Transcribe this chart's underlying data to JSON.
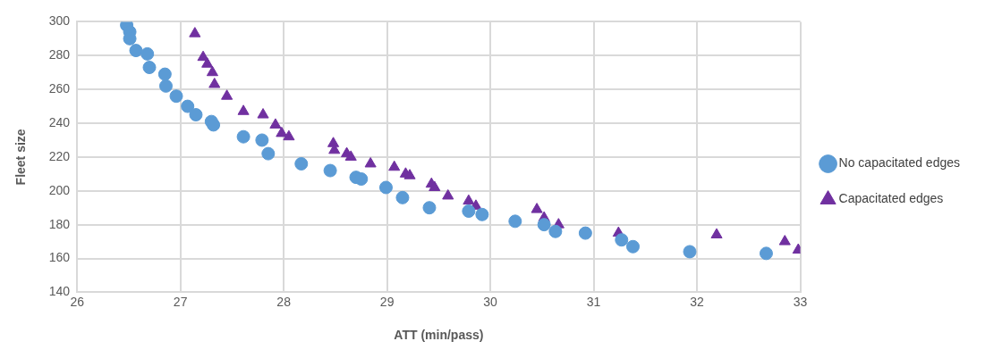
{
  "chart_data": {
    "type": "scatter",
    "xlabel": "ATT (min/pass)",
    "ylabel": "Fleet size",
    "xlim": [
      26,
      33
    ],
    "xticks": [
      26,
      27,
      28,
      29,
      30,
      31,
      32,
      33
    ],
    "ylim": [
      140,
      300
    ],
    "yticks": [
      140,
      160,
      180,
      200,
      220,
      240,
      260,
      280,
      300
    ],
    "grid": true,
    "legend": "right",
    "series": [
      {
        "name": "No capacitated edges",
        "color": "#5b9bd5",
        "marker": "circle",
        "x": [
          26.48,
          26.51,
          26.51,
          26.57,
          26.68,
          26.7,
          26.85,
          26.86,
          26.96,
          27.07,
          27.15,
          27.3,
          27.32,
          27.61,
          27.79,
          27.85,
          28.17,
          28.45,
          28.7,
          28.75,
          28.99,
          29.15,
          29.41,
          29.79,
          29.92,
          30.24,
          30.52,
          30.63,
          30.92,
          31.27,
          31.38,
          31.93,
          32.67
        ],
        "values": [
          298,
          294,
          290,
          283,
          281,
          273,
          269,
          262,
          256,
          250,
          245,
          241,
          239,
          232,
          230,
          222,
          216,
          212,
          208,
          207,
          202,
          196,
          190,
          188,
          186,
          182,
          180,
          176,
          175,
          171,
          167,
          164,
          163
        ]
      },
      {
        "name": "Capacitated edges",
        "color": "#7030a0",
        "marker": "triangle",
        "x": [
          27.14,
          27.22,
          27.26,
          27.31,
          27.33,
          27.45,
          27.61,
          27.8,
          27.92,
          27.98,
          28.05,
          28.48,
          28.49,
          28.61,
          28.65,
          28.84,
          29.07,
          29.18,
          29.22,
          29.43,
          29.46,
          29.59,
          29.79,
          29.86,
          30.45,
          30.52,
          30.66,
          31.24,
          32.19,
          32.85,
          32.98
        ],
        "values": [
          293,
          279,
          275,
          270,
          263,
          256,
          247,
          245,
          239,
          234,
          232,
          228,
          224,
          222,
          220,
          216,
          214,
          210,
          209,
          204,
          202,
          197,
          194,
          191,
          189,
          184,
          180,
          175,
          174,
          170,
          165
        ]
      }
    ]
  }
}
